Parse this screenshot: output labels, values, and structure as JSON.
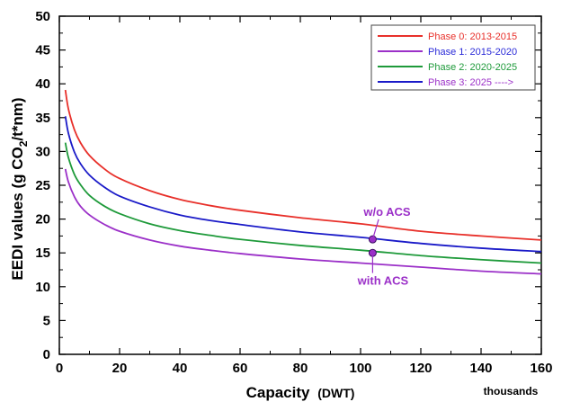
{
  "chart_data": {
    "type": "line",
    "xlabel": "Capacity",
    "xlabel_unit": "(DWT)",
    "x_unit_note": "thousands",
    "ylabel_prefix": "EEDI values (g CO",
    "ylabel_sub": "2",
    "ylabel_suffix": "/t*nm)",
    "xlim": [
      0,
      160
    ],
    "ylim": [
      0,
      50
    ],
    "x_ticks": [
      0,
      20,
      40,
      60,
      80,
      100,
      120,
      140,
      160
    ],
    "y_ticks": [
      0,
      5,
      10,
      15,
      20,
      25,
      30,
      35,
      40,
      45,
      50
    ],
    "grid": false,
    "legend_position": "top-right",
    "series": [
      {
        "name": "Phase 0: 2013-2015",
        "color": "#e8302a",
        "text_color": "#e8302a",
        "x": [
          2,
          3,
          5,
          7,
          10,
          15,
          20,
          30,
          40,
          50,
          60,
          80,
          100,
          120,
          140,
          160
        ],
        "y": [
          39.1,
          36.3,
          33.2,
          31.3,
          29.4,
          27.4,
          26.0,
          24.2,
          22.9,
          22.0,
          21.3,
          20.2,
          19.3,
          18.2,
          17.5,
          16.9
        ]
      },
      {
        "name": "Phase 1: 2015-2020",
        "color": "#9b30c8",
        "text_color": "#2a2ad8",
        "x": [
          2,
          3,
          5,
          7,
          10,
          15,
          20,
          30,
          40,
          50,
          60,
          80,
          100,
          120,
          140,
          160
        ],
        "y": [
          27.4,
          25.5,
          23.3,
          21.9,
          20.6,
          19.2,
          18.2,
          16.9,
          16.0,
          15.4,
          14.9,
          14.1,
          13.5,
          12.9,
          12.3,
          11.9
        ]
      },
      {
        "name": "Phase 2: 2020-2025",
        "color": "#1e9a3a",
        "text_color": "#1e9a3a",
        "x": [
          2,
          3,
          5,
          7,
          10,
          15,
          20,
          30,
          40,
          50,
          60,
          80,
          100,
          120,
          140,
          160
        ],
        "y": [
          31.3,
          29.1,
          26.6,
          25.1,
          23.5,
          21.9,
          20.8,
          19.3,
          18.3,
          17.6,
          17.0,
          16.1,
          15.4,
          14.6,
          14.0,
          13.5
        ]
      },
      {
        "name": "Phase 3: 2025 ---->",
        "color": "#1a1ac8",
        "text_color": "#9b30c8",
        "x": [
          2,
          3,
          5,
          7,
          10,
          15,
          20,
          30,
          40,
          50,
          60,
          80,
          100,
          120,
          140,
          160
        ],
        "y": [
          35.2,
          32.7,
          29.9,
          28.2,
          26.5,
          24.7,
          23.4,
          21.8,
          20.6,
          19.8,
          19.2,
          18.1,
          17.3,
          16.4,
          15.7,
          15.2
        ]
      }
    ],
    "markers": [
      {
        "x": 104,
        "y": 17.0,
        "color": "#9b30c8"
      },
      {
        "x": 104,
        "y": 15.0,
        "color": "#9b30c8"
      }
    ],
    "annotations": [
      {
        "text": "w/o ACS",
        "x_text": 101,
        "y_text": 20.5,
        "x_target": 104,
        "y_target": 17.0,
        "color": "#9b30c8"
      },
      {
        "text": "with ACS",
        "x_text": 99,
        "y_text": 10.3,
        "x_target": 104,
        "y_target": 15.0,
        "color": "#9b30c8"
      }
    ]
  }
}
